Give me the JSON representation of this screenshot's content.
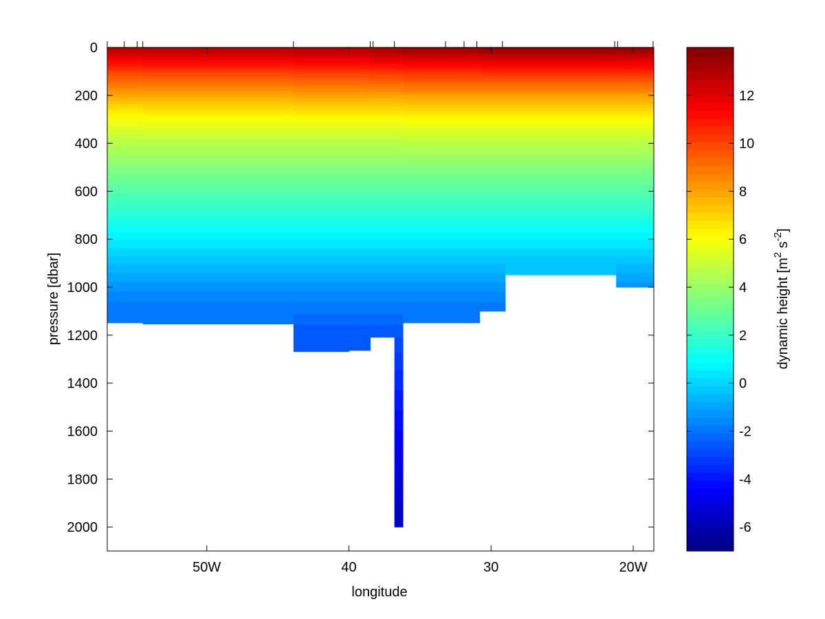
{
  "chart_data": {
    "type": "section",
    "xlabel": "longitude",
    "ylabel": "pressure [dbar]",
    "xlim": [
      -57.0,
      -18.55
    ],
    "xticks": [
      {
        "value": -50,
        "label": "50W"
      },
      {
        "value": -40,
        "label": "40"
      },
      {
        "value": -30,
        "label": "30"
      },
      {
        "value": -20,
        "label": "20W"
      }
    ],
    "ylim": [
      0,
      2100
    ],
    "y_reversed": true,
    "yticks": [
      0,
      200,
      400,
      600,
      800,
      1000,
      1200,
      1400,
      1600,
      1800,
      2000
    ],
    "stations": [
      -57.0,
      -55.8,
      -54.9,
      -54.5,
      -43.9,
      -38.5,
      -38.3,
      -36.8,
      -33.2,
      -31.9,
      -31.0,
      -29.2,
      -21.3,
      -21.1,
      -18.6
    ],
    "x_edges": [
      -57.0,
      -54.5,
      -43.9,
      -40.0,
      -38.5,
      -36.8,
      -36.2,
      -30.8,
      -29.0,
      -21.2,
      -18.55
    ],
    "bottom": [
      1150,
      1155,
      1270,
      1265,
      1210,
      2000,
      1150,
      1100,
      950,
      1000
    ],
    "pressure": [
      0,
      100,
      200,
      300,
      400,
      500,
      600,
      700,
      800,
      900,
      1000,
      1100,
      1200,
      1300,
      1400,
      1500,
      1600,
      1700,
      1800,
      1900,
      2000
    ],
    "columns": [
      [
        13.0,
        10.1,
        7.9,
        5.9,
        4.6,
        3.6,
        2.6,
        1.6,
        0.6,
        -0.4,
        -1.3,
        -2.0,
        null,
        null,
        null,
        null,
        null,
        null,
        null,
        null,
        null
      ],
      [
        13.1,
        10.2,
        7.9,
        6.0,
        4.6,
        3.6,
        2.6,
        1.6,
        0.6,
        -0.4,
        -1.3,
        -2.0,
        null,
        null,
        null,
        null,
        null,
        null,
        null,
        null,
        null
      ],
      [
        13.2,
        10.3,
        8.0,
        6.0,
        4.6,
        3.6,
        2.6,
        1.6,
        0.6,
        -0.4,
        -1.3,
        -2.0,
        -2.7,
        null,
        null,
        null,
        null,
        null,
        null,
        null,
        null
      ],
      [
        13.2,
        10.3,
        8.0,
        6.0,
        4.6,
        3.6,
        2.6,
        1.6,
        0.6,
        -0.4,
        -1.3,
        -2.0,
        -2.7,
        null,
        null,
        null,
        null,
        null,
        null,
        null,
        null
      ],
      [
        13.4,
        10.4,
        8.0,
        6.0,
        4.6,
        3.6,
        2.6,
        1.6,
        0.6,
        -0.4,
        -1.3,
        -2.0,
        -2.7,
        null,
        null,
        null,
        null,
        null,
        null,
        null,
        null
      ],
      [
        13.5,
        10.4,
        8.0,
        6.0,
        4.6,
        3.6,
        2.6,
        1.6,
        0.6,
        -0.4,
        -1.3,
        -2.0,
        -2.7,
        -3.2,
        -3.6,
        -4.0,
        -4.4,
        -4.8,
        -5.1,
        -5.4,
        -5.6
      ],
      [
        13.6,
        10.5,
        8.1,
        6.1,
        4.7,
        3.6,
        2.6,
        1.6,
        0.6,
        -0.4,
        -1.3,
        -2.0,
        null,
        null,
        null,
        null,
        null,
        null,
        null,
        null,
        null
      ],
      [
        13.8,
        10.6,
        8.1,
        6.1,
        4.7,
        3.6,
        2.6,
        1.6,
        0.6,
        -0.4,
        -1.3,
        -2.0,
        null,
        null,
        null,
        null,
        null,
        null,
        null,
        null,
        null
      ],
      [
        13.8,
        10.6,
        8.1,
        6.1,
        4.7,
        3.6,
        2.6,
        1.6,
        0.6,
        -0.4,
        null,
        null,
        null,
        null,
        null,
        null,
        null,
        null,
        null,
        null,
        null
      ],
      [
        13.7,
        10.6,
        8.1,
        6.1,
        4.7,
        3.6,
        2.6,
        1.6,
        0.6,
        -0.4,
        -1.3,
        null,
        null,
        null,
        null,
        null,
        null,
        null,
        null,
        null,
        null
      ]
    ],
    "colorbar": {
      "label": [
        "dynamic height [m",
        "2",
        " s",
        "-2",
        "]"
      ],
      "clim": [
        -7,
        14
      ],
      "ticks": [
        -6,
        -4,
        -2,
        0,
        2,
        4,
        6,
        8,
        10,
        12
      ],
      "colormap": "jet",
      "levels": 64
    }
  }
}
